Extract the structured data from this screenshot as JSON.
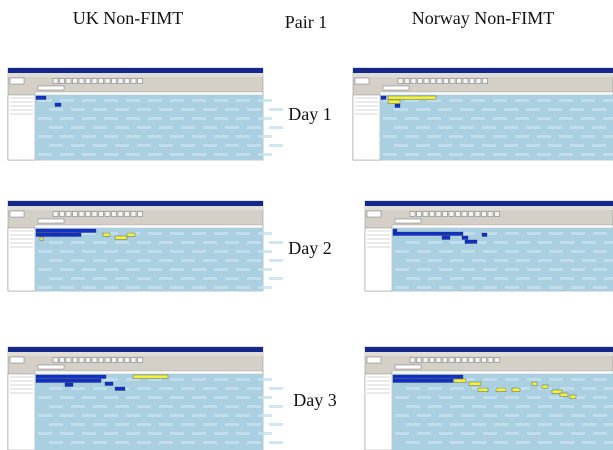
{
  "header": {
    "left": "UK Non-FIMT",
    "center": "Pair 1",
    "right": "Norway Non-FIMT"
  },
  "rows": [
    {
      "label": "Day 1"
    },
    {
      "label": "Day 2"
    },
    {
      "label": "Day 3"
    }
  ]
}
